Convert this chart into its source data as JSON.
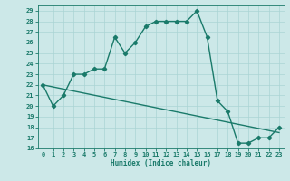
{
  "line1_x": [
    0,
    1,
    2,
    3,
    4,
    5,
    6,
    7,
    8,
    9,
    10,
    11,
    12,
    13,
    14,
    15,
    16,
    17,
    18,
    19,
    20,
    21,
    22,
    23
  ],
  "line1_y": [
    22,
    20,
    21,
    23,
    23,
    23.5,
    23.5,
    26.5,
    25,
    26,
    27.5,
    28,
    28,
    28,
    28,
    29,
    26.5,
    20.5,
    19.5,
    16.5,
    16.5,
    17,
    17,
    18
  ],
  "line2_x": [
    0,
    23
  ],
  "line2_y": [
    22.0,
    17.5
  ],
  "color": "#1a7a6a",
  "bg_color": "#cce8e8",
  "grid_color": "#aad4d4",
  "xlabel": "Humidex (Indice chaleur)",
  "ylim": [
    16,
    29.5
  ],
  "xlim": [
    -0.5,
    23.5
  ],
  "yticks": [
    16,
    17,
    18,
    19,
    20,
    21,
    22,
    23,
    24,
    25,
    26,
    27,
    28,
    29
  ],
  "xticks": [
    0,
    1,
    2,
    3,
    4,
    5,
    6,
    7,
    8,
    9,
    10,
    11,
    12,
    13,
    14,
    15,
    16,
    17,
    18,
    19,
    20,
    21,
    22,
    23
  ],
  "marker": "D",
  "markersize": 2.2,
  "linewidth": 1.0,
  "tick_fontsize": 5,
  "xlabel_fontsize": 5.5
}
